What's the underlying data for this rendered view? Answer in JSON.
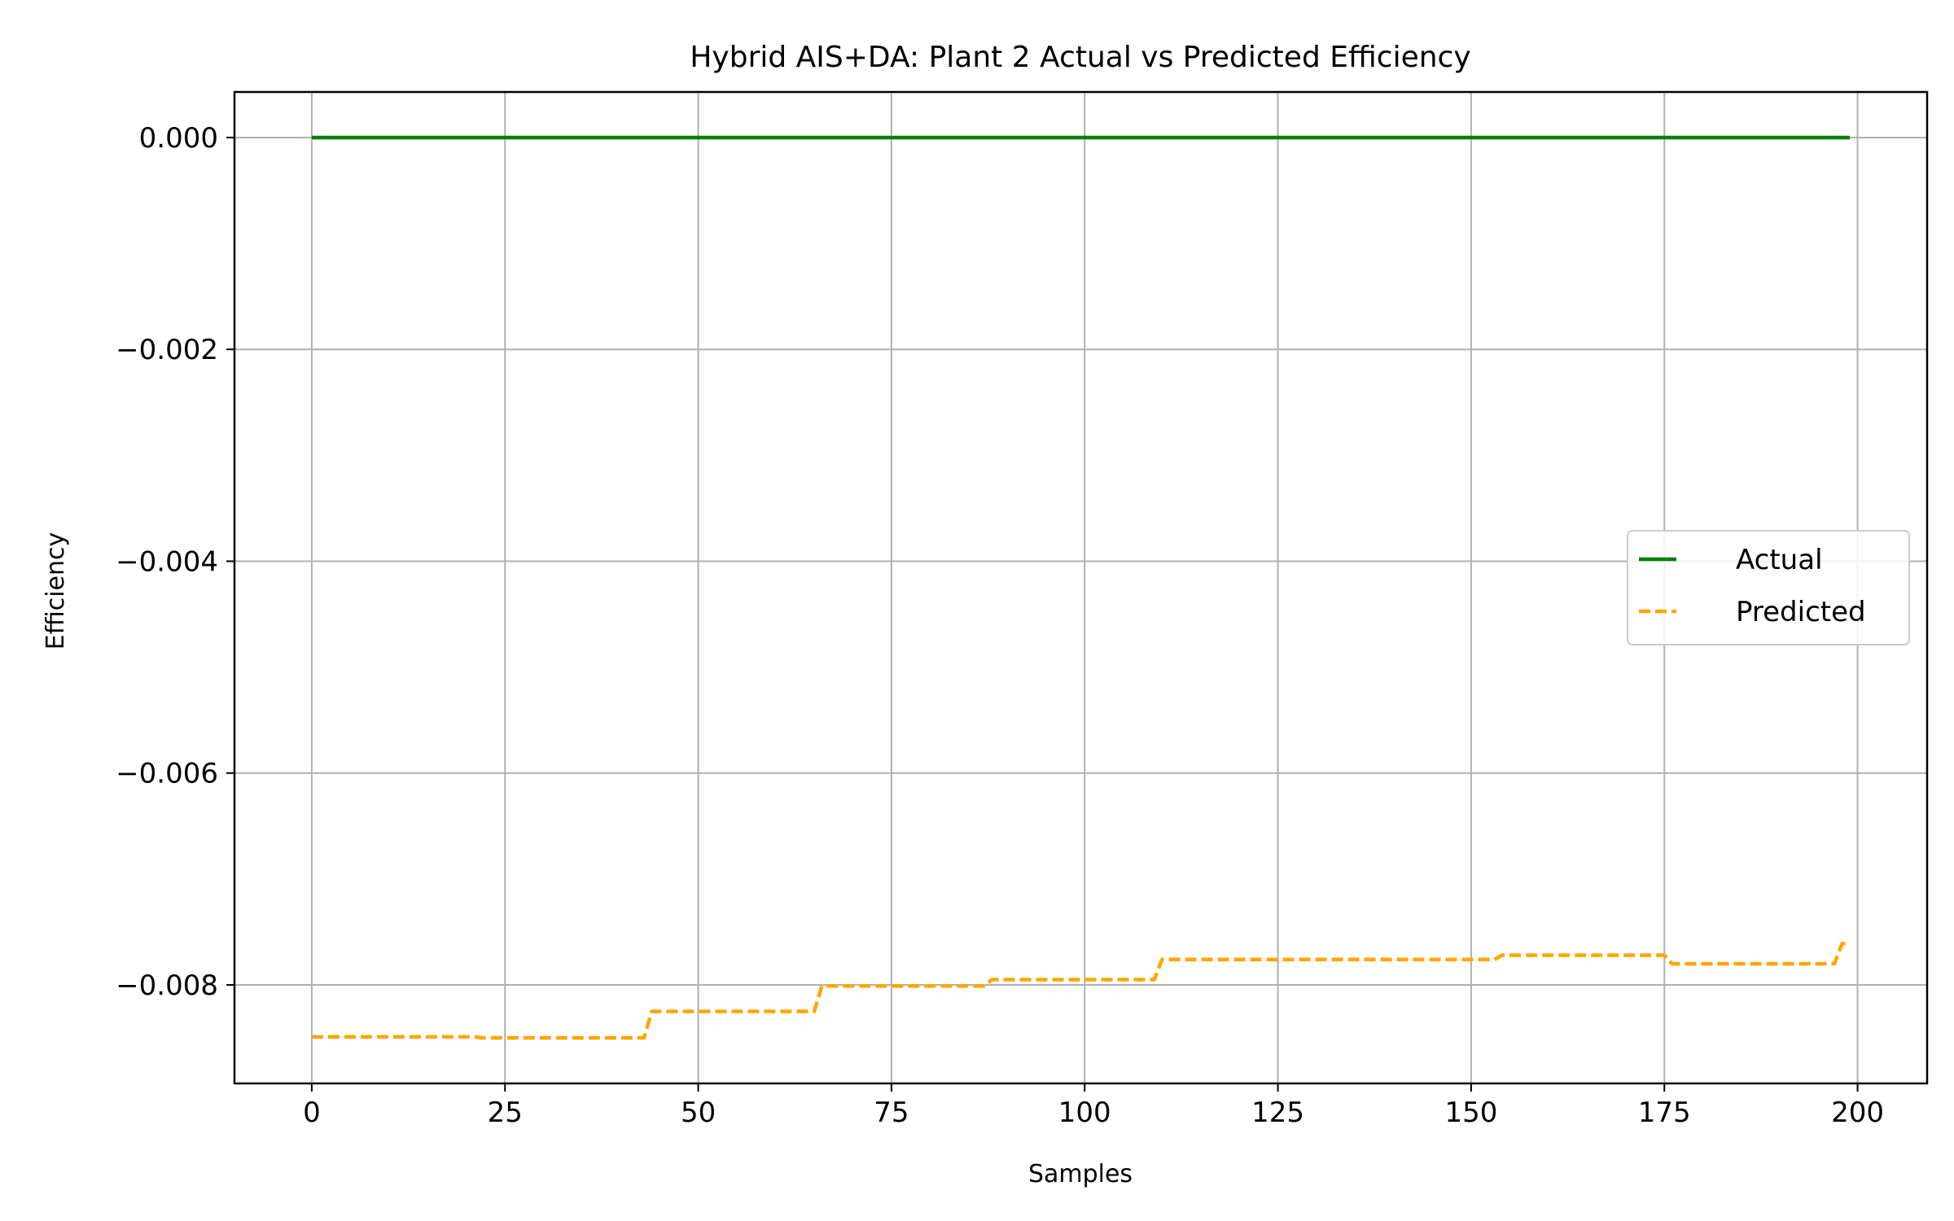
{
  "chart_data": {
    "type": "line",
    "title": "Hybrid AIS+DA: Plant 2 Actual vs Predicted Efficiency",
    "xlabel": "Samples",
    "ylabel": "Efficiency",
    "xlim": [
      -10,
      209
    ],
    "ylim": [
      -0.00893,
      0.00043
    ],
    "xticks": [
      0,
      25,
      50,
      75,
      100,
      125,
      150,
      175,
      200
    ],
    "xtick_labels": [
      "0",
      "25",
      "50",
      "75",
      "100",
      "125",
      "150",
      "175",
      "200"
    ],
    "yticks": [
      0,
      -0.002,
      -0.004,
      -0.006,
      -0.008
    ],
    "ytick_labels": [
      "0.000",
      "−0.002",
      "−0.004",
      "−0.006",
      "−0.008"
    ],
    "grid": true,
    "legend_position": "center-right",
    "series": [
      {
        "name": "Actual",
        "color": "#008000",
        "style": "solid",
        "points": [
          [
            0,
            0.0
          ],
          [
            199,
            0.0
          ]
        ]
      },
      {
        "name": "Predicted",
        "color": "#FFA500",
        "style": "dashed",
        "points": [
          [
            0,
            -0.00849
          ],
          [
            21,
            -0.00849
          ],
          [
            22,
            -0.0085
          ],
          [
            43,
            -0.0085
          ],
          [
            44,
            -0.00825
          ],
          [
            65,
            -0.00825
          ],
          [
            66,
            -0.00801
          ],
          [
            87,
            -0.00801
          ],
          [
            88,
            -0.00795
          ],
          [
            109,
            -0.00795
          ],
          [
            110,
            -0.00776
          ],
          [
            153,
            -0.00776
          ],
          [
            154,
            -0.00772
          ],
          [
            175,
            -0.00772
          ],
          [
            176,
            -0.0078
          ],
          [
            197,
            -0.0078
          ],
          [
            198,
            -0.00761
          ],
          [
            199,
            -0.00761
          ]
        ]
      }
    ]
  }
}
